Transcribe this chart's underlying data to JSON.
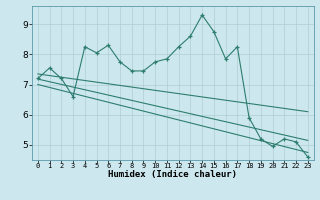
{
  "xlabel": "Humidex (Indice chaleur)",
  "background_color": "#cce8ee",
  "grid_color": "#b0cdd4",
  "line_color": "#2e7d6e",
  "xlim": [
    -0.5,
    23.5
  ],
  "ylim": [
    4.5,
    9.6
  ],
  "yticks": [
    5,
    6,
    7,
    8,
    9
  ],
  "xticks": [
    0,
    1,
    2,
    3,
    4,
    5,
    6,
    7,
    8,
    9,
    10,
    11,
    12,
    13,
    14,
    15,
    16,
    17,
    18,
    19,
    20,
    21,
    22,
    23
  ],
  "main_line_x": [
    0,
    1,
    2,
    3,
    4,
    5,
    6,
    7,
    8,
    9,
    10,
    11,
    12,
    13,
    14,
    15,
    16,
    17,
    18,
    19,
    20,
    21,
    22,
    23
  ],
  "main_line_y": [
    7.2,
    7.55,
    7.2,
    6.6,
    8.25,
    8.05,
    8.3,
    7.75,
    7.45,
    7.45,
    7.75,
    7.85,
    8.25,
    8.6,
    9.3,
    8.75,
    7.85,
    8.25,
    5.9,
    5.2,
    4.95,
    5.2,
    5.1,
    4.6
  ],
  "line1_x": [
    0,
    23
  ],
  "line1_y": [
    7.35,
    6.1
  ],
  "line2_x": [
    0,
    23
  ],
  "line2_y": [
    7.18,
    5.15
  ],
  "line3_x": [
    0,
    23
  ],
  "line3_y": [
    7.0,
    4.75
  ]
}
